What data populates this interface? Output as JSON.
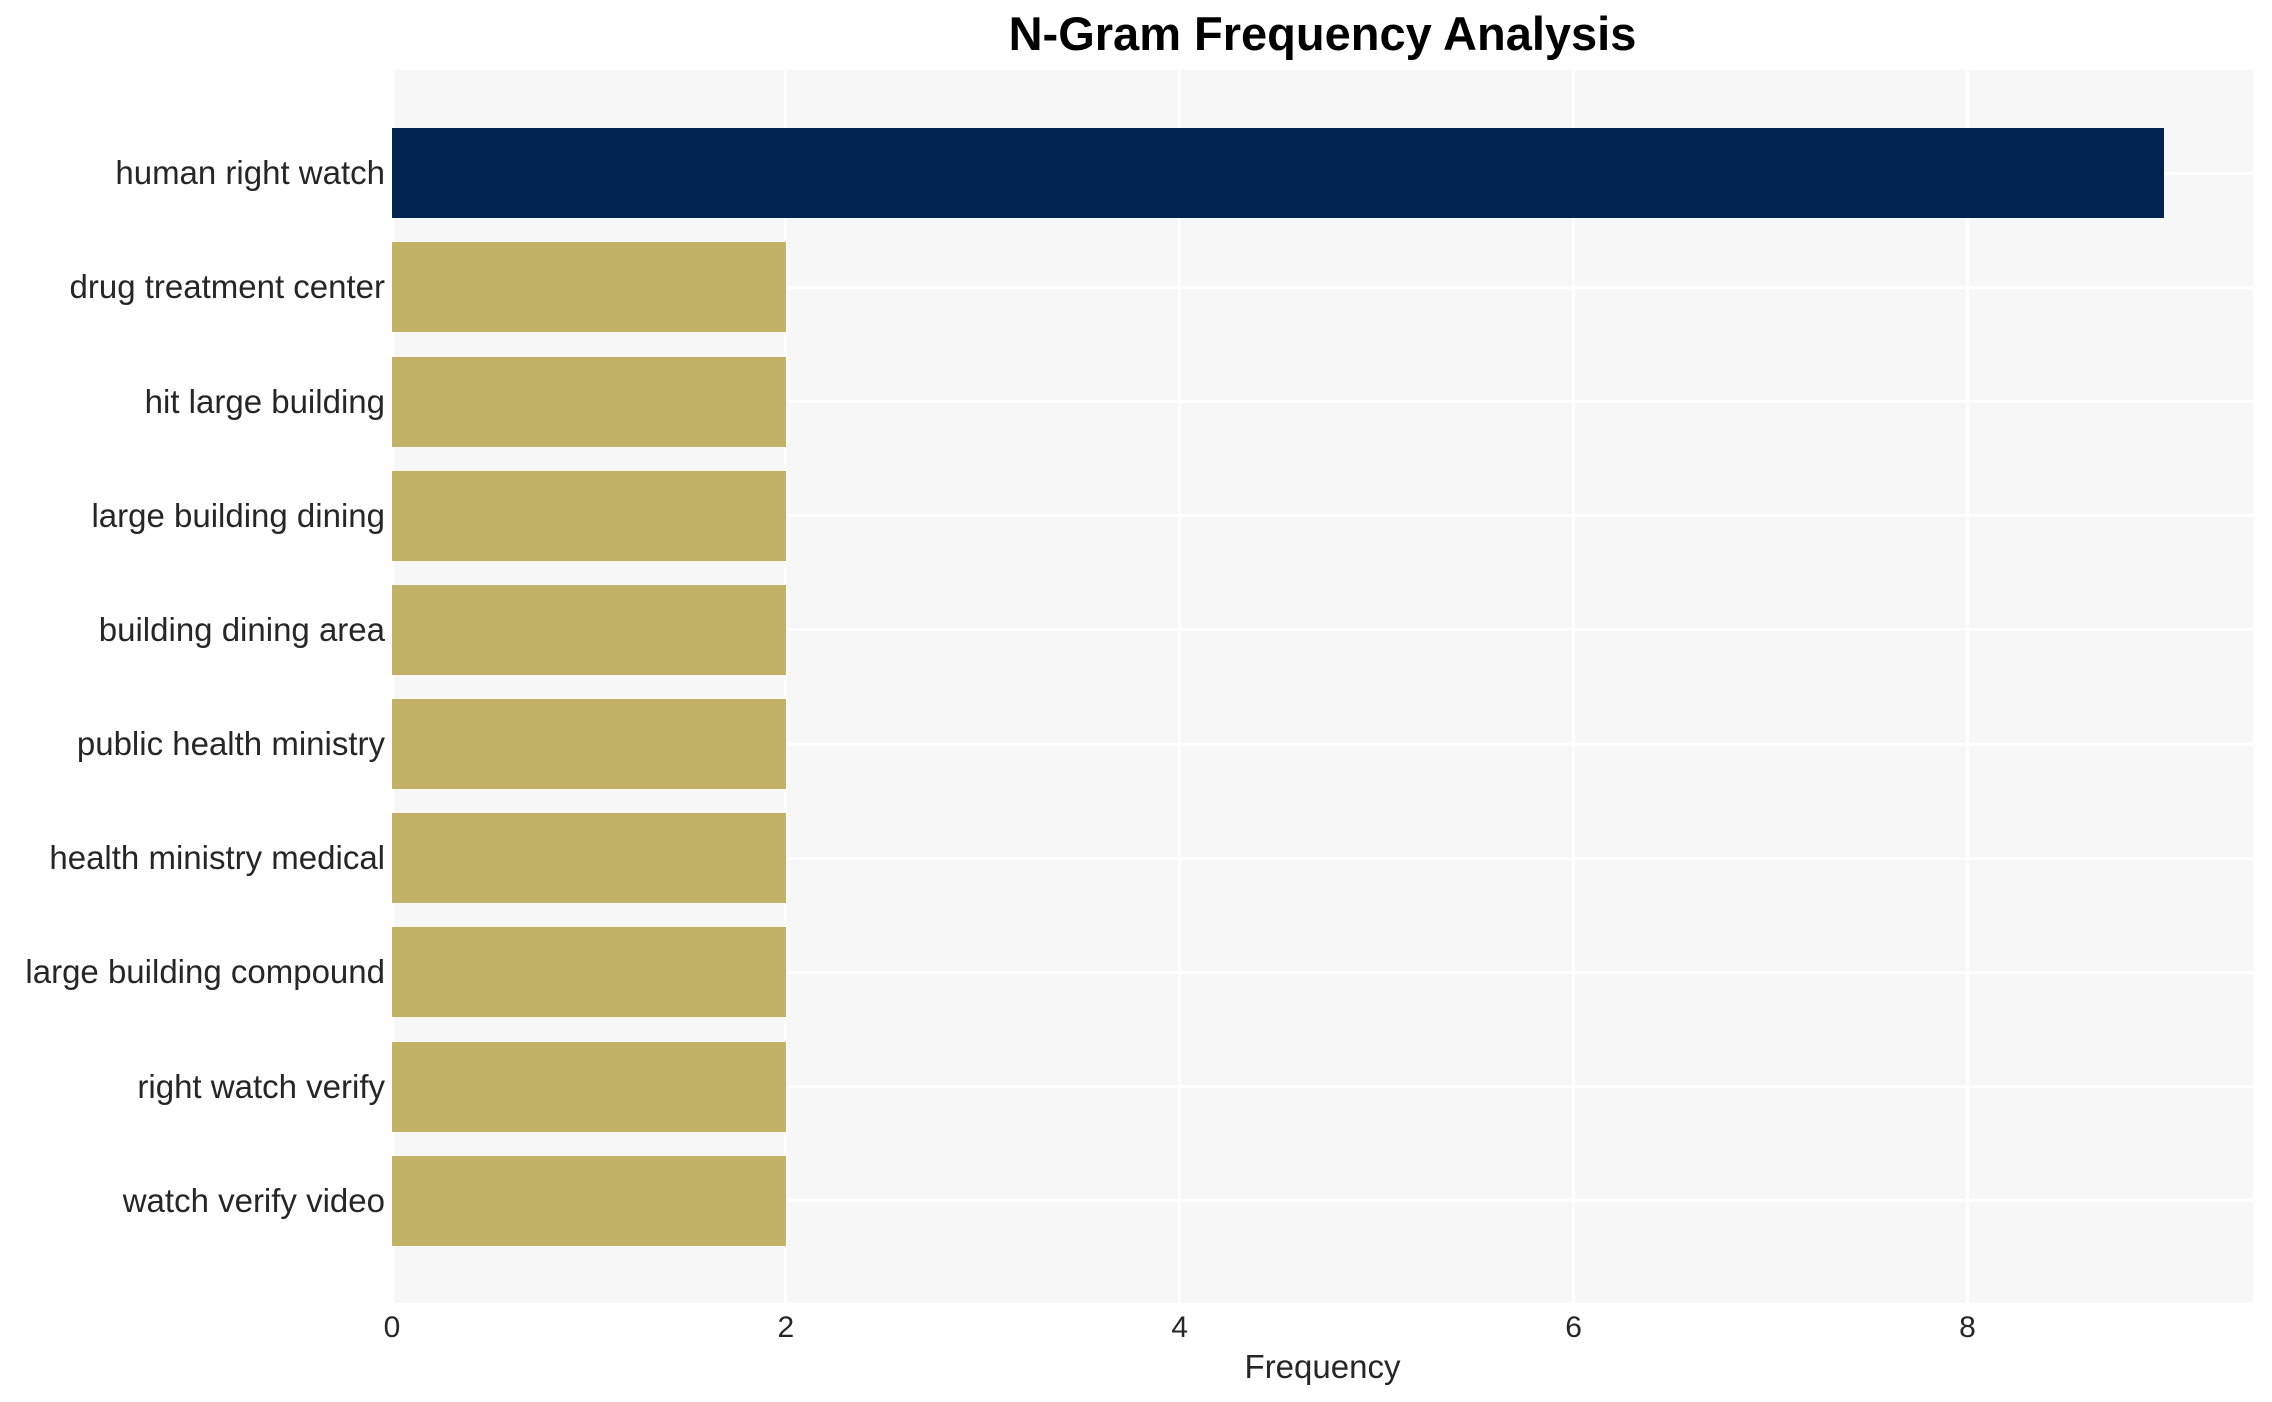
{
  "chart_data": {
    "type": "bar",
    "orientation": "horizontal",
    "title": "N-Gram Frequency Analysis",
    "xlabel": "Frequency",
    "ylabel": "",
    "categories": [
      "human right watch",
      "drug treatment center",
      "hit large building",
      "large building dining",
      "building dining area",
      "public health ministry",
      "health ministry medical",
      "large building compound",
      "right watch verify",
      "watch verify video"
    ],
    "values": [
      9,
      2,
      2,
      2,
      2,
      2,
      2,
      2,
      2,
      2
    ],
    "xticks": [
      0,
      2,
      4,
      6,
      8
    ],
    "xlim": [
      0,
      9.45
    ],
    "grid": true,
    "legend": false,
    "highlight_index": 0,
    "colors": {
      "bar_highlight": "#02234e",
      "bar_default": "#c1b267",
      "plot_background": "#f7f7f8",
      "gridline": "#ffffff",
      "tick_text": "#262626",
      "title_text": "#000000"
    }
  }
}
